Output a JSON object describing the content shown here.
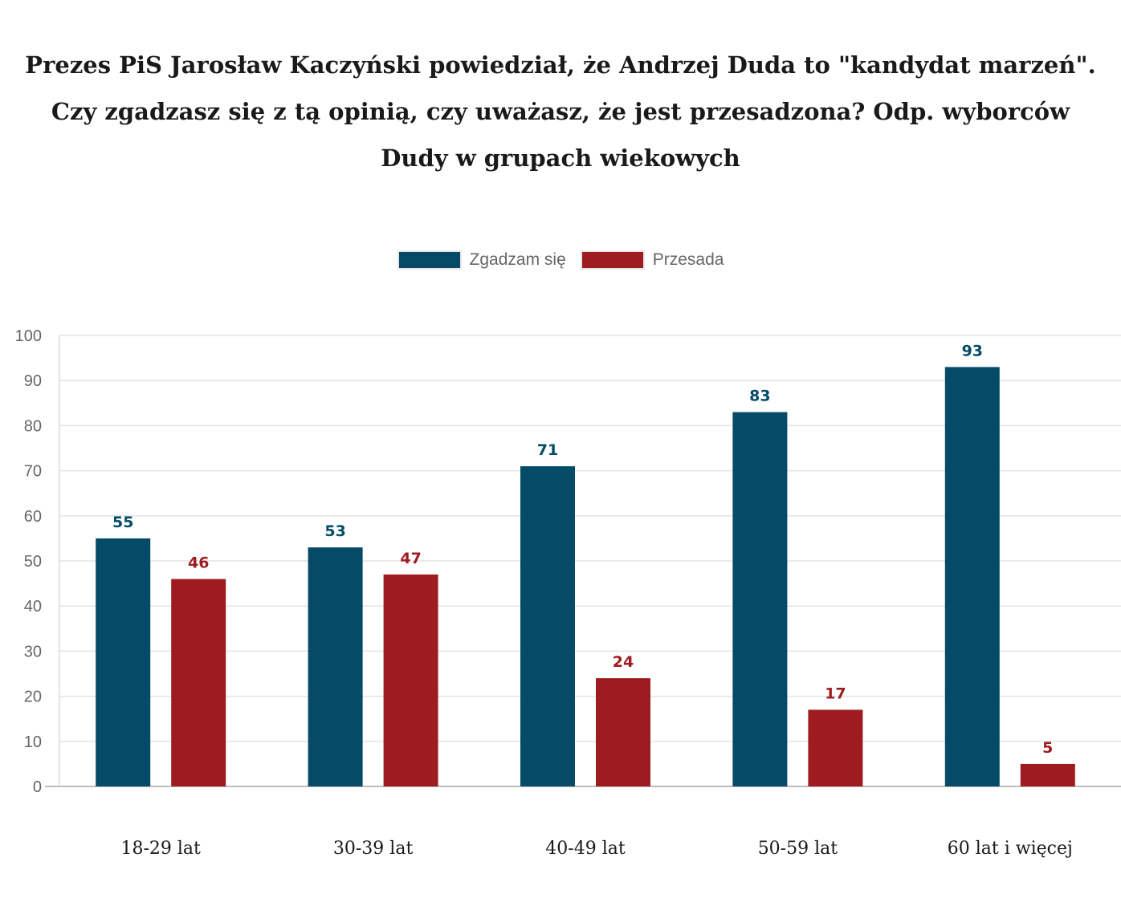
{
  "chart_data": {
    "type": "bar",
    "title_lines": [
      "Prezes PiS Jarosław Kaczyński powiedział, że Andrzej Duda to \"kandydat marzeń\".",
      "Czy zgadzasz się z tą opinią, czy uważasz, że jest przesadzona? Odp. wyborców",
      "Dudy w grupach wiekowych"
    ],
    "categories": [
      "18-29 lat",
      "30-39 lat",
      "40-49 lat",
      "50-59 lat",
      "60 lat i więcej"
    ],
    "series": [
      {
        "name": "Zgadzam się",
        "color": "#054a66",
        "values": [
          55,
          53,
          71,
          83,
          93
        ]
      },
      {
        "name": "Przesada",
        "color": "#9e1c1f",
        "values": [
          46,
          47,
          24,
          17,
          5
        ]
      }
    ],
    "y_ticks": [
      0,
      10,
      20,
      30,
      40,
      50,
      60,
      70,
      80,
      90,
      100
    ],
    "ylim": [
      0,
      100
    ],
    "grid": true,
    "legend_position": "top-center",
    "data_labels": true
  }
}
